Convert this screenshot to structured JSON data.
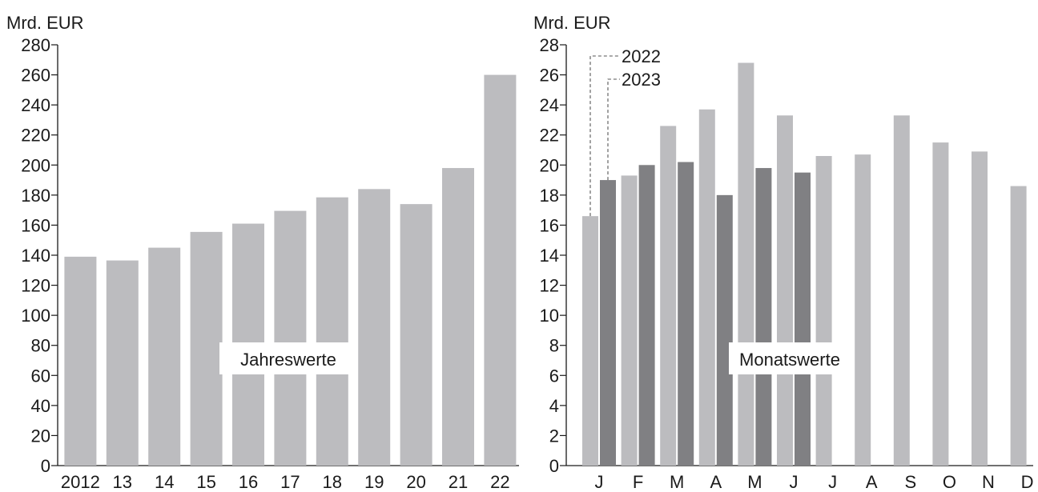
{
  "chart_data": [
    {
      "type": "bar",
      "ylabel": "Mrd. EUR",
      "ylim": [
        0,
        280
      ],
      "yticks": [
        0,
        20,
        40,
        60,
        80,
        100,
        120,
        140,
        160,
        180,
        200,
        220,
        240,
        260,
        280
      ],
      "categories": [
        "2012",
        "13",
        "14",
        "15",
        "16",
        "17",
        "18",
        "19",
        "20",
        "21",
        "22"
      ],
      "values": [
        139,
        136.5,
        145,
        155.5,
        161,
        169.5,
        178.5,
        184,
        174,
        198,
        260
      ],
      "annotation": "Jahreswerte",
      "colors": {
        "bar": "#bcbcbf"
      }
    },
    {
      "type": "bar",
      "ylabel": "Mrd. EUR",
      "ylim": [
        0,
        28
      ],
      "yticks": [
        0,
        2,
        4,
        6,
        8,
        10,
        12,
        14,
        16,
        18,
        20,
        22,
        24,
        26,
        28
      ],
      "categories": [
        "J",
        "F",
        "M",
        "A",
        "M",
        "J",
        "J",
        "A",
        "S",
        "O",
        "N",
        "D"
      ],
      "series": [
        {
          "name": "2022",
          "values": [
            16.6,
            19.3,
            22.6,
            23.7,
            26.8,
            23.3,
            20.6,
            20.7,
            23.3,
            21.5,
            20.9,
            18.6
          ],
          "color": "#bcbcbf"
        },
        {
          "name": "2023",
          "values": [
            19.0,
            20.0,
            20.2,
            18.0,
            19.8,
            19.5,
            null,
            null,
            null,
            null,
            null,
            null
          ],
          "color": "#808083"
        }
      ],
      "annotation": "Monatswerte"
    }
  ]
}
